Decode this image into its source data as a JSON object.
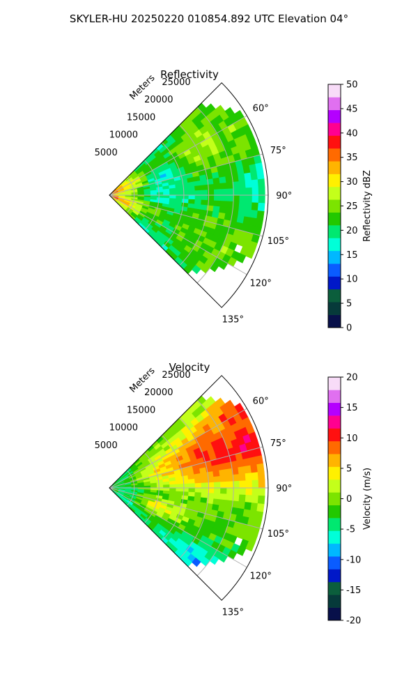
{
  "figure": {
    "title": "SKYLER-HU  20250220  010854.892 UTC Elevation 04°"
  },
  "chart_data": [
    {
      "type": "heatmap",
      "subtype": "polar-sector (PPI radar)",
      "title": "Reflectivity",
      "range_label": "Meters",
      "range_ticks": [
        5000,
        10000,
        15000,
        20000,
        25000
      ],
      "range_max": 32000,
      "azimuth_ticks": [
        "60°",
        "75°",
        "90°",
        "105°",
        "120°",
        "135°"
      ],
      "azimuth_range_deg": [
        45,
        135
      ],
      "grid": true,
      "colorbar": {
        "label": "Reflectivity dBZ",
        "min": 0,
        "max": 50,
        "ticks": [
          0,
          5,
          10,
          15,
          20,
          25,
          30,
          35,
          40,
          45,
          50
        ],
        "colors": [
          "#08104a",
          "#063a3a",
          "#0b5e3c",
          "#0018c8",
          "#0a5cff",
          "#00b8ff",
          "#00ffd8",
          "#00e870",
          "#22c800",
          "#7ce400",
          "#c4ff1a",
          "#fff000",
          "#ffb400",
          "#ff6a00",
          "#ff1010",
          "#ff0090",
          "#b400ff",
          "#e070f0",
          "#f8dcf8"
        ]
      },
      "field_description": "mostly 20–26 dBZ; 30–36 dBZ near radar; 15–18 dBZ patch near 70° at ~10 km"
    },
    {
      "type": "heatmap",
      "subtype": "polar-sector (PPI radar)",
      "title": "Velocity",
      "range_label": "Meters",
      "range_ticks": [
        5000,
        10000,
        15000,
        20000,
        25000
      ],
      "range_max": 32000,
      "azimuth_ticks": [
        "60°",
        "75°",
        "90°",
        "105°",
        "120°",
        "135°"
      ],
      "azimuth_range_deg": [
        45,
        135
      ],
      "grid": true,
      "colorbar": {
        "label": "Velocity (m/s)",
        "min": -20,
        "max": 20,
        "ticks": [
          -20,
          -15,
          -10,
          -5,
          0,
          5,
          10,
          15,
          20
        ],
        "colors": [
          "#08104a",
          "#063a3a",
          "#0b5e3c",
          "#0018c8",
          "#0a5cff",
          "#00b8ff",
          "#00ffd8",
          "#00e870",
          "#22c800",
          "#7ce400",
          "#c4ff1a",
          "#fff000",
          "#ffb400",
          "#ff6a00",
          "#ff1010",
          "#ff0090",
          "#b400ff",
          "#e070f0",
          "#f8dcf8"
        ]
      },
      "field_description": "-4 to 0 m/s near radar; 9–12 m/s toward 60–75° far range; 15–18 m/s at 55–60° edge; -7 to -10 m/s near 130°"
    }
  ]
}
